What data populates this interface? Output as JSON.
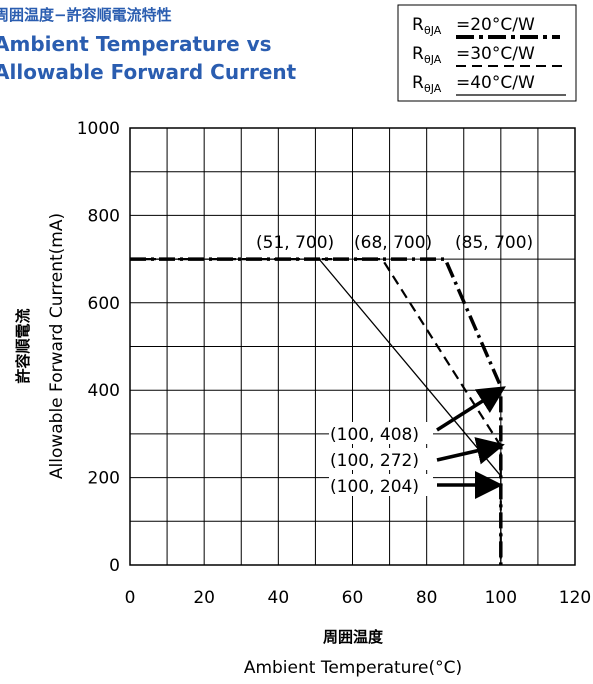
{
  "title_jp": "周囲温度−許容順電流特性",
  "title_en_1": "Ambient Temperature vs",
  "title_en_2": "Allowable Forward Current",
  "colors": {
    "title": "#2a5db0",
    "line": "#000000",
    "grid": "#000000"
  },
  "chart_data": {
    "type": "line",
    "xlabel_jp": "周囲温度",
    "xlabel": "Ambient Temperature(°C)",
    "ylabel_jp": "許容順電流",
    "ylabel": "Allowable Forward Current(mA)",
    "xlim": [
      0,
      120
    ],
    "ylim": [
      0,
      1000
    ],
    "xticks": [
      0,
      20,
      40,
      60,
      80,
      100,
      120
    ],
    "yticks": [
      0,
      200,
      400,
      600,
      800,
      1000
    ],
    "grid": true,
    "legend_position": "top-right",
    "series": [
      {
        "name": "RθJA =20°C/W",
        "style": "dash-dot-thick",
        "x": [
          0,
          85,
          100,
          100
        ],
        "y": [
          700,
          700,
          408,
          0
        ]
      },
      {
        "name": "RθJA =30°C/W",
        "style": "dashed",
        "x": [
          0,
          68,
          100,
          100
        ],
        "y": [
          700,
          700,
          272,
          0
        ]
      },
      {
        "name": "RθJA =40°C/W",
        "style": "solid",
        "x": [
          0,
          51,
          100,
          100
        ],
        "y": [
          700,
          700,
          204,
          0
        ]
      }
    ],
    "legend": [
      {
        "sub": "θJA",
        "text": "=20°C/W"
      },
      {
        "sub": "θJA",
        "text": "=30°C/W"
      },
      {
        "sub": "θJA",
        "text": "=40°C/W"
      }
    ],
    "annotations_top": [
      "(51, 700)",
      "(68, 700)",
      "(85, 700)"
    ],
    "annotations_right": [
      "(100, 408)",
      "(100, 272)",
      "(100, 204)"
    ]
  }
}
